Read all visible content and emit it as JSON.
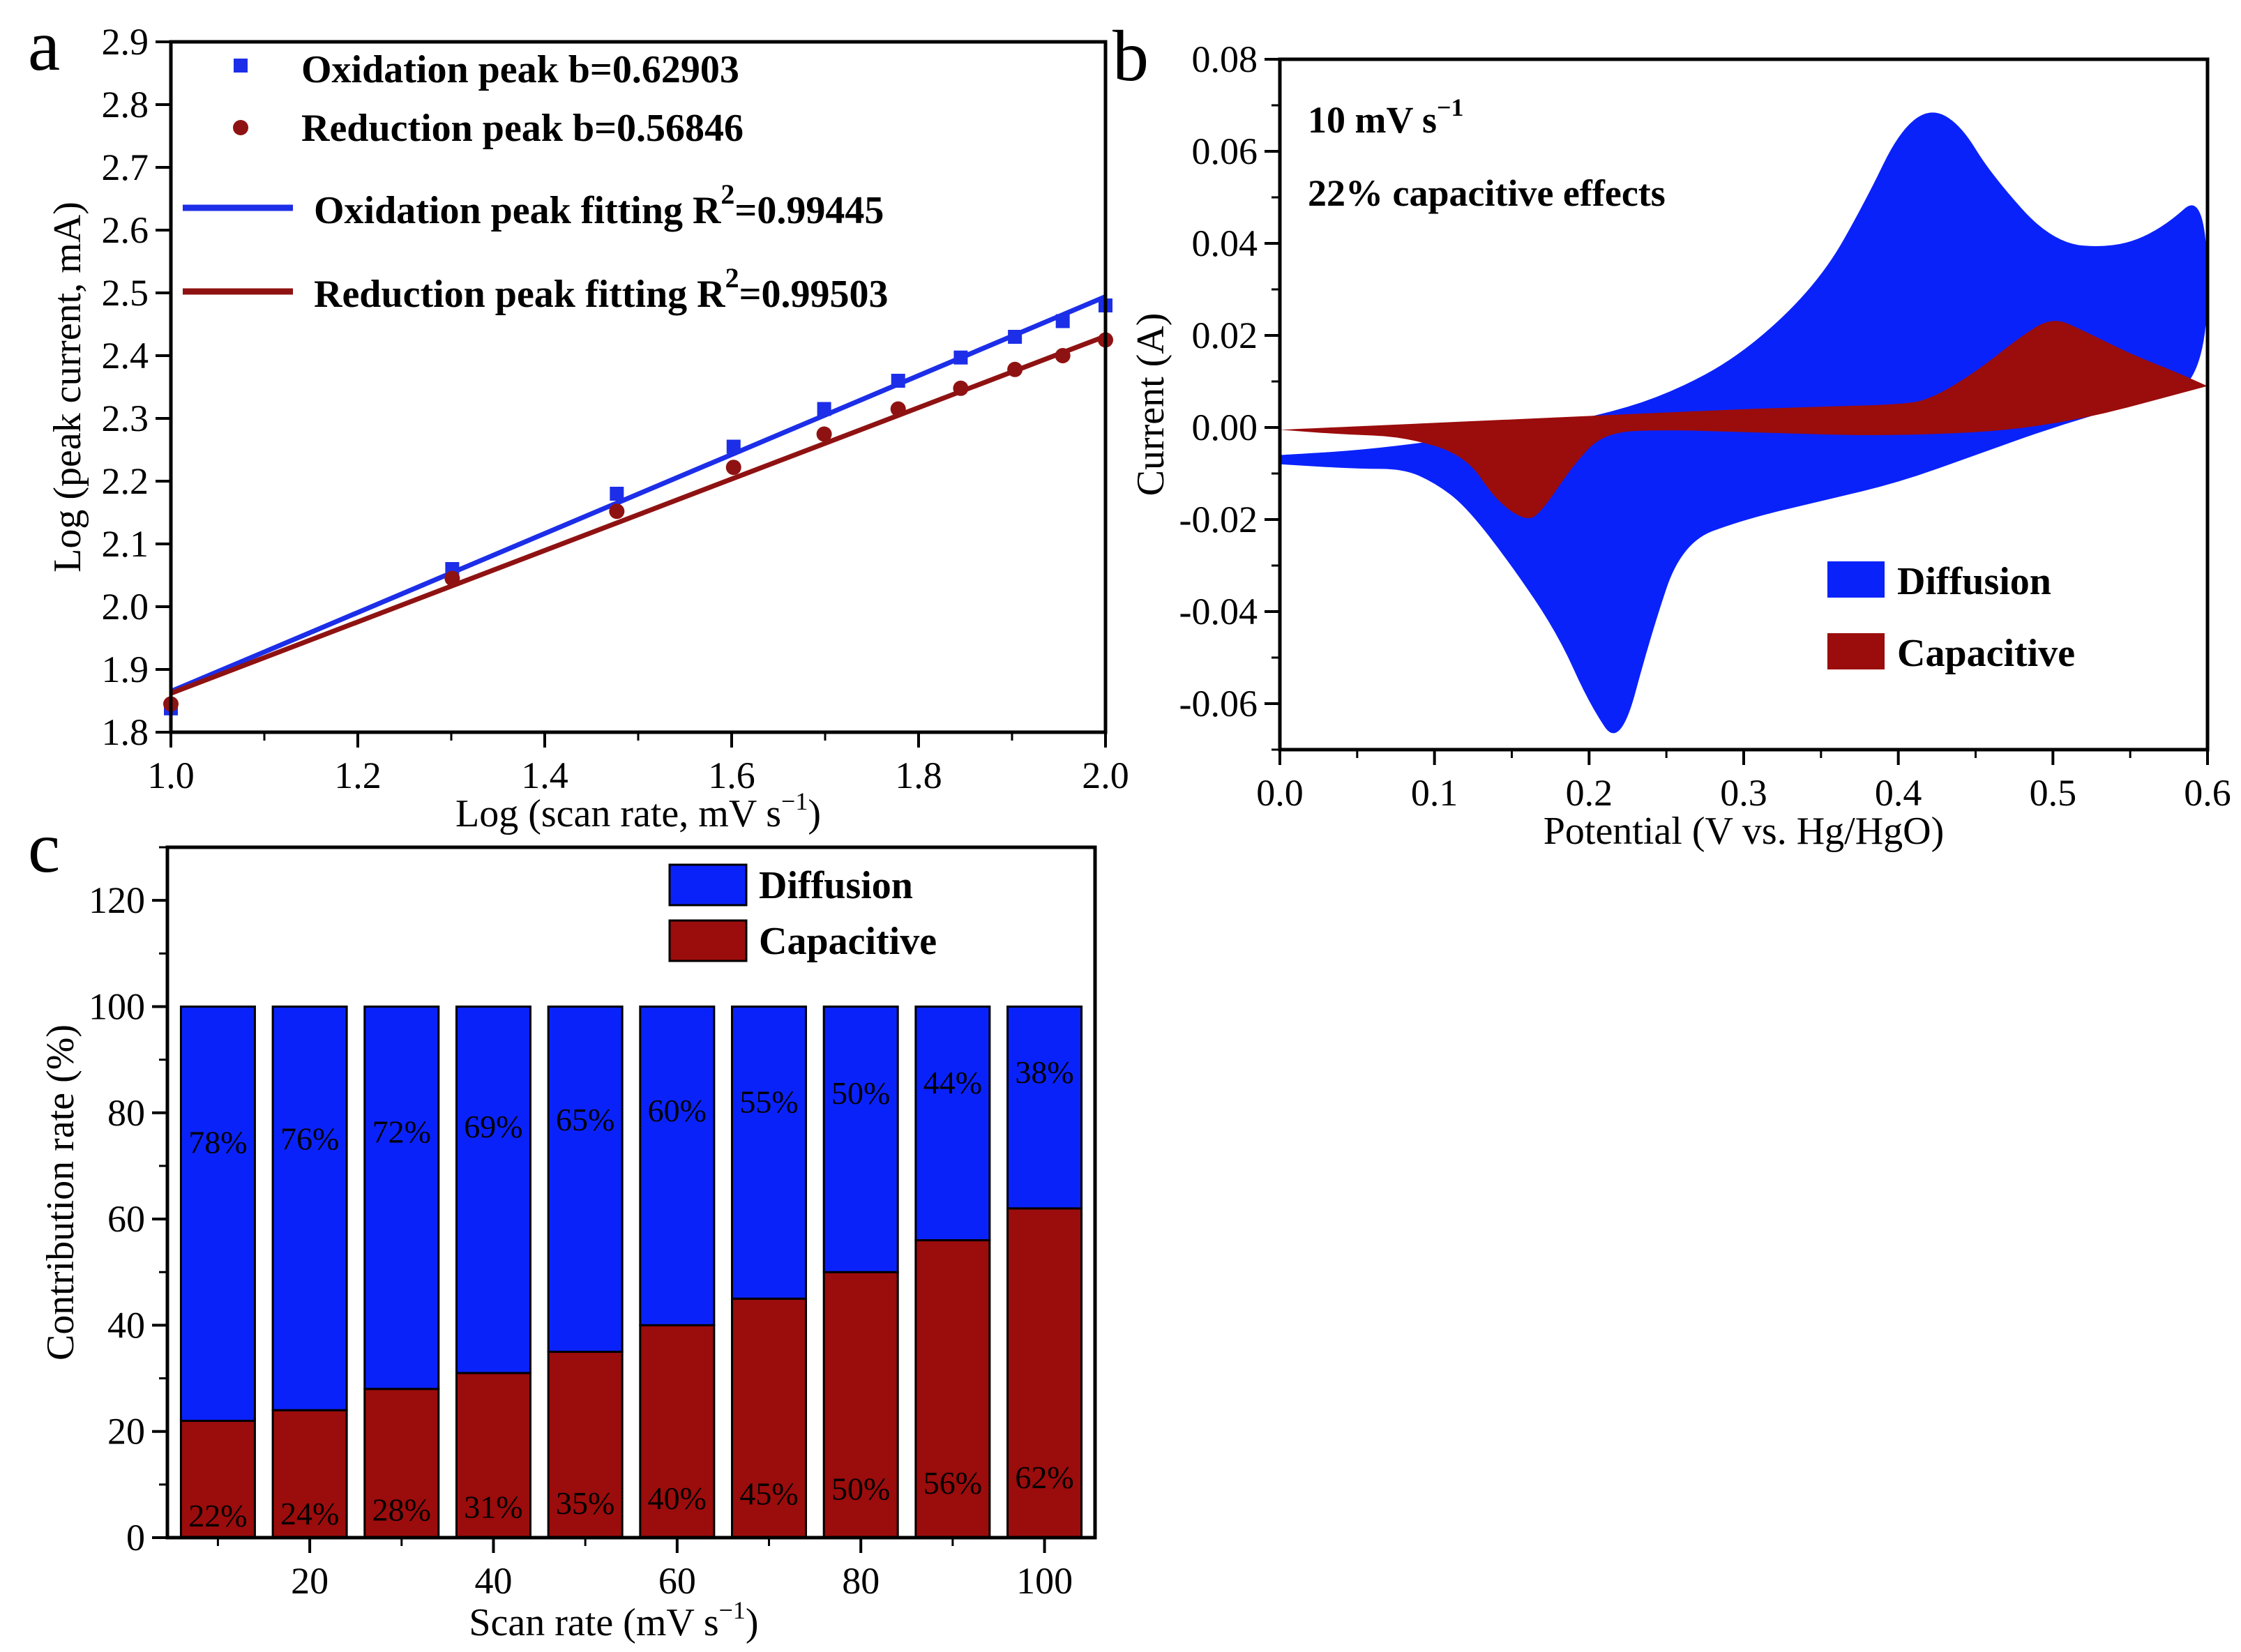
{
  "colors": {
    "diffusion": "#0a22fa",
    "capacitive": "#9b0c0c",
    "oxidation": "#1c2ee8",
    "reduction": "#8f1212",
    "axis": "#000000"
  },
  "chart_data": [
    {
      "panel": "a",
      "type": "scatter",
      "xlabel": "Log (scan rate, mV s",
      "xlabel_sup": "−1",
      "xlabel_end": ")",
      "ylabel": "Log (peak current, mA)",
      "xlim": [
        1.0,
        2.0
      ],
      "ylim": [
        1.8,
        2.9
      ],
      "xticks": [
        "1.0",
        "1.2",
        "1.4",
        "1.6",
        "1.8",
        "2.0"
      ],
      "yticks": [
        "1.8",
        "1.9",
        "2.0",
        "2.1",
        "2.2",
        "2.3",
        "2.4",
        "2.5",
        "2.6",
        "2.7",
        "2.8",
        "2.9"
      ],
      "x": [
        1.0,
        1.30103,
        1.47712,
        1.60206,
        1.69897,
        1.77815,
        1.8451,
        1.90309,
        1.95424,
        2.0
      ],
      "series": [
        {
          "name": "Oxidation peak",
          "legend": "Oxidation peak b=0.62903",
          "marker": "square",
          "values": [
            1.838,
            2.06,
            2.18,
            2.255,
            2.315,
            2.36,
            2.397,
            2.43,
            2.455,
            2.48
          ]
        },
        {
          "name": "Reduction peak",
          "legend": "Reduction peak  b=0.56846",
          "marker": "circle",
          "values": [
            1.845,
            2.045,
            2.152,
            2.222,
            2.275,
            2.315,
            2.348,
            2.378,
            2.4,
            2.425
          ]
        }
      ],
      "fits": [
        {
          "name": "Oxidation peak fitting",
          "legend_prefix": "Oxidation peak fitting R",
          "legend_sup": "2",
          "legend_suffix": "=0.99445",
          "x": [
            1.0,
            2.0
          ],
          "y": [
            1.865,
            2.494
          ]
        },
        {
          "name": "Reduction peak fitting",
          "legend_prefix": "Reduction peak fitting R",
          "legend_sup": "2",
          "legend_suffix": "=0.99503",
          "x": [
            1.0,
            2.0
          ],
          "y": [
            1.862,
            2.431
          ]
        }
      ]
    },
    {
      "panel": "b",
      "type": "area",
      "xlabel": "Potential (V vs. Hg/HgO)",
      "ylabel": "Current (A)",
      "xlim": [
        0.0,
        0.6
      ],
      "ylim": [
        -0.07,
        0.08
      ],
      "xticks": [
        "0.0",
        "0.1",
        "0.2",
        "0.3",
        "0.4",
        "0.5",
        "0.6"
      ],
      "yticks": [
        "0.08",
        "0.06",
        "0.04",
        "0.02",
        "0.00",
        "-0.02",
        "-0.04",
        "-0.06"
      ],
      "annotations": [
        "10 mV s",
        "−1",
        "22% capacitive effects"
      ],
      "series": [
        {
          "name": "Diffusion",
          "upper_x": [
            0.0,
            0.05,
            0.1,
            0.15,
            0.2,
            0.25,
            0.3,
            0.35,
            0.38,
            0.4,
            0.42,
            0.44,
            0.46,
            0.5,
            0.54,
            0.57,
            0.6
          ],
          "upper_y": [
            -0.006,
            -0.005,
            -0.003,
            -0.0005,
            0.002,
            0.007,
            0.016,
            0.032,
            0.05,
            0.064,
            0.0695,
            0.066,
            0.055,
            0.04,
            0.039,
            0.043,
            0.052
          ],
          "lower_x": [
            0.6,
            0.55,
            0.5,
            0.45,
            0.4,
            0.35,
            0.3,
            0.26,
            0.24,
            0.22,
            0.2,
            0.18,
            0.15,
            0.12,
            0.1,
            0.08,
            0.05,
            0.0
          ],
          "lower_y": [
            0.009,
            0.005,
            0.0,
            -0.006,
            -0.012,
            -0.016,
            -0.02,
            -0.025,
            -0.045,
            -0.07,
            -0.06,
            -0.045,
            -0.03,
            -0.017,
            -0.012,
            -0.009,
            -0.009,
            -0.008
          ]
        },
        {
          "name": "Capacitive",
          "upper_x": [
            0.0,
            0.1,
            0.2,
            0.3,
            0.35,
            0.4,
            0.42,
            0.45,
            0.48,
            0.5,
            0.52,
            0.55,
            0.58,
            0.6
          ],
          "upper_y": [
            -0.0005,
            0.001,
            0.0025,
            0.004,
            0.0045,
            0.005,
            0.006,
            0.012,
            0.02,
            0.024,
            0.021,
            0.016,
            0.012,
            0.009
          ],
          "lower_x": [
            0.6,
            0.5,
            0.4,
            0.3,
            0.25,
            0.21,
            0.19,
            0.17,
            0.16,
            0.14,
            0.12,
            0.08,
            0.04,
            0.0
          ],
          "lower_y": [
            0.009,
            0.0,
            -0.002,
            -0.001,
            -0.0005,
            -0.001,
            -0.008,
            -0.018,
            -0.0205,
            -0.016,
            -0.006,
            -0.002,
            -0.0015,
            -0.0005
          ]
        }
      ]
    },
    {
      "panel": "c",
      "type": "bar",
      "stacked": true,
      "xlabel": "Scan rate (mV s",
      "xlabel_sup": "−1",
      "xlabel_end": ")",
      "ylabel": "Contribution rate (%)",
      "xlim": [
        4.5,
        105.5
      ],
      "ylim": [
        0,
        130
      ],
      "xticks": [
        "20",
        "40",
        "60",
        "80",
        "100"
      ],
      "yticks": [
        "0",
        "20",
        "40",
        "60",
        "80",
        "100",
        "120"
      ],
      "categories": [
        10,
        20,
        30,
        40,
        50,
        60,
        70,
        80,
        90,
        100
      ],
      "series": [
        {
          "name": "Capacitive",
          "values": [
            22,
            24,
            28,
            31,
            35,
            40,
            45,
            50,
            56,
            62
          ],
          "labels": [
            "22%",
            "24%",
            "28%",
            "31%",
            "35%",
            "40%",
            "45%",
            "50%",
            "56%",
            "62%"
          ]
        },
        {
          "name": "Diffusion",
          "values": [
            78,
            76,
            72,
            69,
            65,
            60,
            55,
            50,
            44,
            38
          ],
          "labels": [
            "78%",
            "76%",
            "72%",
            "69%",
            "65%",
            "60%",
            "55%",
            "50%",
            "44%",
            "38%"
          ]
        }
      ],
      "legend": [
        "Diffusion",
        "Capacitive"
      ]
    }
  ],
  "panels": {
    "a": "a",
    "b": "b",
    "c": "c"
  }
}
